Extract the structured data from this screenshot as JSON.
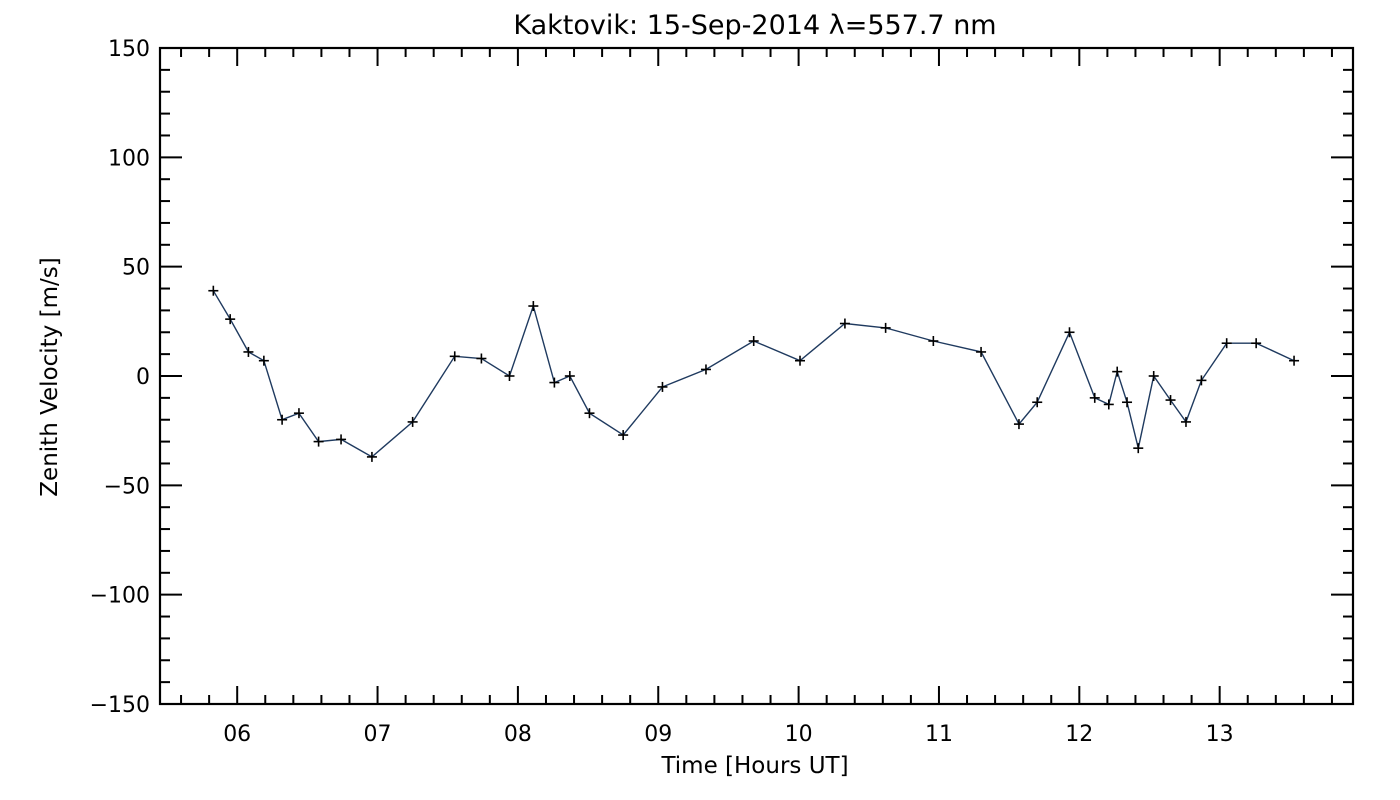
{
  "chart_data": {
    "type": "line",
    "title": "Kaktovik: 15-Sep-2014 λ=557.7 nm",
    "xlabel": "Time [Hours UT]",
    "ylabel": "Zenith Velocity [m/s]",
    "xlim": [
      5.45,
      13.95
    ],
    "ylim": [
      -150,
      150
    ],
    "x_ticks": [
      {
        "value": 6,
        "label": "06"
      },
      {
        "value": 7,
        "label": "07"
      },
      {
        "value": 8,
        "label": "08"
      },
      {
        "value": 9,
        "label": "09"
      },
      {
        "value": 10,
        "label": "10"
      },
      {
        "value": 11,
        "label": "11"
      },
      {
        "value": 12,
        "label": "12"
      },
      {
        "value": 13,
        "label": "13"
      }
    ],
    "y_ticks": [
      {
        "value": 150,
        "label": "150"
      },
      {
        "value": 100,
        "label": "100"
      },
      {
        "value": 50,
        "label": "50"
      },
      {
        "value": 0,
        "label": "0"
      },
      {
        "value": -50,
        "label": "−50"
      },
      {
        "value": -100,
        "label": "−100"
      },
      {
        "value": -150,
        "label": "−150"
      }
    ],
    "grid": false,
    "line_color": "#1f3a5f",
    "marker_color": "#000000",
    "marker": "+",
    "series": [
      {
        "x": [
          5.83,
          5.95,
          6.08,
          6.19,
          6.32,
          6.44,
          6.58,
          6.74,
          6.96,
          7.25,
          7.55,
          7.74,
          7.94,
          8.11,
          8.26,
          8.37,
          8.51,
          8.75,
          9.03,
          9.34,
          9.68,
          10.01,
          10.33,
          10.62,
          10.96,
          11.3,
          11.57,
          11.7,
          11.93,
          12.11,
          12.21,
          12.27,
          12.34,
          12.42,
          12.53,
          12.65,
          12.76,
          12.87,
          13.05,
          13.26,
          13.53
        ],
        "y": [
          39,
          26,
          11,
          7,
          -20,
          -17,
          -30,
          -29,
          -37,
          -21,
          9,
          8,
          0,
          32,
          -3,
          0,
          -17,
          -27,
          -5,
          3,
          16,
          7,
          24,
          22,
          16,
          11,
          -22,
          -12,
          20,
          -10,
          -13,
          2,
          -12,
          -33,
          0,
          -11,
          -21,
          -2,
          15,
          15,
          7
        ]
      }
    ]
  }
}
